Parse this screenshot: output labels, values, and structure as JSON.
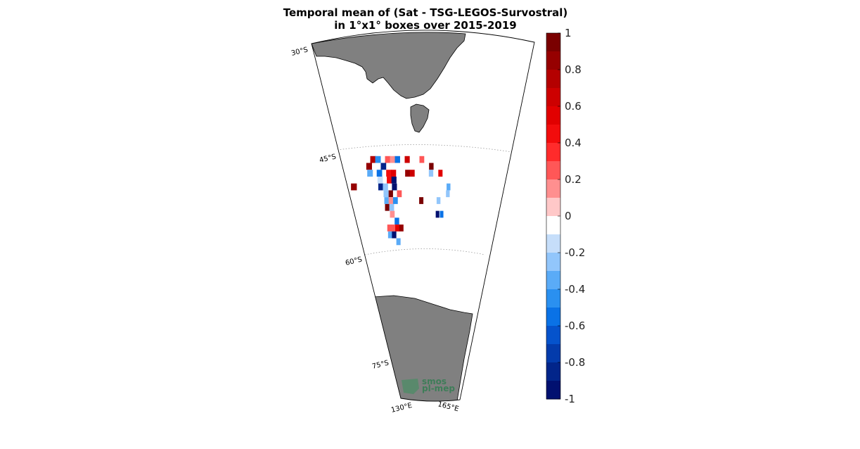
{
  "title": {
    "line1": "Temporal mean of (Sat - TSG-LEGOS-Survostral)",
    "line2": "in 1°x1° boxes over 2015-2019"
  },
  "map": {
    "lat_labels": [
      "30°S",
      "45°S",
      "60°S",
      "75°S"
    ],
    "lon_labels": [
      "130°E",
      "165°E"
    ],
    "land_color": "#808080",
    "grid": true
  },
  "logo": {
    "line1": "smos",
    "line2": "pl-mep"
  },
  "chart_data": {
    "type": "heatmap",
    "colorbar": {
      "range": [
        -1,
        1
      ],
      "step": 0.1,
      "tick_labels": [
        "1",
        "0.8",
        "0.6",
        "0.4",
        "0.2",
        "0",
        "-0.2",
        "-0.4",
        "-0.6",
        "-0.8",
        "-1"
      ],
      "colors": [
        "#7a0000",
        "#960000",
        "#b40000",
        "#cd0000",
        "#e10000",
        "#f20c0c",
        "#ff2b2b",
        "#ff5757",
        "#ff8f8f",
        "#ffc8c8",
        "#ffffff",
        "#c6defa",
        "#92c6fb",
        "#5aabf7",
        "#2a90f0",
        "#0a72e6",
        "#0553cc",
        "#033bab",
        "#02258a",
        "#011070"
      ]
    },
    "cells": [
      {
        "lon": 138.5,
        "lat": -46.5,
        "value": 0.75
      },
      {
        "lon": 137.5,
        "lat": -47.5,
        "value": 0.85
      },
      {
        "lon": 139.5,
        "lat": -46.5,
        "value": -0.45
      },
      {
        "lon": 140.5,
        "lat": -47.5,
        "value": -0.85
      },
      {
        "lon": 141.5,
        "lat": -46.5,
        "value": 0.3
      },
      {
        "lon": 142.5,
        "lat": -46.5,
        "value": 0.2
      },
      {
        "lon": 143.5,
        "lat": -46.5,
        "value": -0.55
      },
      {
        "lon": 145.5,
        "lat": -46.5,
        "value": 0.65
      },
      {
        "lon": 148.5,
        "lat": -46.5,
        "value": 0.25
      },
      {
        "lon": 150.5,
        "lat": -47.5,
        "value": 0.9
      },
      {
        "lon": 152.5,
        "lat": -48.5,
        "value": 0.55
      },
      {
        "lon": 137.5,
        "lat": -48.5,
        "value": -0.3
      },
      {
        "lon": 139.5,
        "lat": -48.5,
        "value": -0.5
      },
      {
        "lon": 141.5,
        "lat": -48.5,
        "value": 0.45
      },
      {
        "lon": 142.5,
        "lat": -48.5,
        "value": 0.6
      },
      {
        "lon": 145.5,
        "lat": -48.5,
        "value": 0.85
      },
      {
        "lon": 146.5,
        "lat": -48.5,
        "value": 0.7
      },
      {
        "lon": 150.5,
        "lat": -48.5,
        "value": -0.2
      },
      {
        "lon": 133.5,
        "lat": -50.5,
        "value": 0.85
      },
      {
        "lon": 139.5,
        "lat": -49.5,
        "value": -0.15
      },
      {
        "lon": 141.5,
        "lat": -49.5,
        "value": 0.5
      },
      {
        "lon": 142.5,
        "lat": -49.5,
        "value": -0.9
      },
      {
        "lon": 154.5,
        "lat": -50.5,
        "value": -0.3
      },
      {
        "lon": 154.5,
        "lat": -51.5,
        "value": -0.25
      },
      {
        "lon": 139.5,
        "lat": -50.5,
        "value": -0.85
      },
      {
        "lon": 140.5,
        "lat": -50.5,
        "value": -0.2
      },
      {
        "lon": 141.5,
        "lat": -51.5,
        "value": 0.95
      },
      {
        "lon": 142.5,
        "lat": -50.5,
        "value": -0.95
      },
      {
        "lon": 140.5,
        "lat": -51.5,
        "value": -0.2
      },
      {
        "lon": 143.5,
        "lat": -51.5,
        "value": 0.3
      },
      {
        "lon": 140.5,
        "lat": -52.5,
        "value": -0.35
      },
      {
        "lon": 141.5,
        "lat": -52.5,
        "value": 0.2
      },
      {
        "lon": 142.5,
        "lat": -52.5,
        "value": -0.45
      },
      {
        "lon": 148.5,
        "lat": -52.5,
        "value": 0.9
      },
      {
        "lon": 152.5,
        "lat": -52.5,
        "value": -0.2
      },
      {
        "lon": 140.5,
        "lat": -53.5,
        "value": 0.95
      },
      {
        "lon": 141.5,
        "lat": -53.5,
        "value": -0.25
      },
      {
        "lon": 152.5,
        "lat": -54.5,
        "value": -0.9
      },
      {
        "lon": 153.5,
        "lat": -54.5,
        "value": -0.55
      },
      {
        "lon": 141.5,
        "lat": -54.5,
        "value": 0.2
      },
      {
        "lon": 142.5,
        "lat": -55.5,
        "value": -0.5
      },
      {
        "lon": 141.5,
        "lat": -56.5,
        "value": 0.3
      },
      {
        "lon": 142.5,
        "lat": -56.5,
        "value": 0.6
      },
      {
        "lon": 143.5,
        "lat": -56.5,
        "value": 0.85
      },
      {
        "lon": 140.5,
        "lat": -56.5,
        "value": 0.25
      },
      {
        "lon": 140.5,
        "lat": -57.5,
        "value": -0.35
      },
      {
        "lon": 141.5,
        "lat": -57.5,
        "value": -0.95
      },
      {
        "lon": 142.5,
        "lat": -58.5,
        "value": -0.3
      }
    ]
  }
}
